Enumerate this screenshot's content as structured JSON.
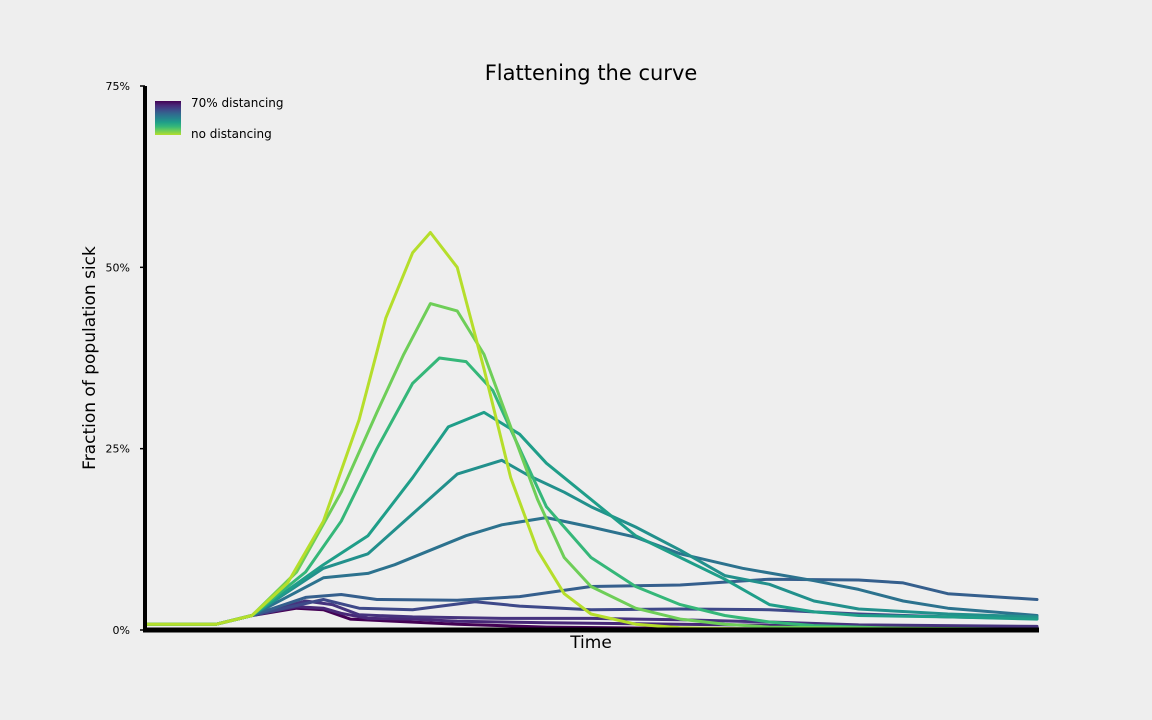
{
  "chart_data": {
    "type": "line",
    "title": "Flattening the curve",
    "xlabel": "Time",
    "ylabel": "Fraction of population sick",
    "ylim": [
      0,
      75
    ],
    "yticks": [
      {
        "value": 0,
        "label": "0%"
      },
      {
        "value": 25,
        "label": "25%"
      },
      {
        "value": 50,
        "label": "50%"
      },
      {
        "value": 75,
        "label": "75%"
      }
    ],
    "xlim": [
      0,
      100
    ],
    "xticks": "none",
    "grid": false,
    "legend": {
      "placement": "top-left",
      "type": "colorbar",
      "top_label": "70% distancing",
      "bottom_label": "no distancing",
      "colormap": [
        "#440154",
        "#482878",
        "#3e4989",
        "#31688e",
        "#26828e",
        "#1f9e89",
        "#35b779",
        "#6ece58",
        "#b5de2b"
      ]
    },
    "series": [
      {
        "color": "#440154",
        "points": [
          [
            0,
            0.8
          ],
          [
            8,
            0.8
          ],
          [
            12,
            2
          ],
          [
            17,
            3
          ],
          [
            20,
            2.8
          ],
          [
            23,
            1.5
          ],
          [
            28,
            1.2
          ],
          [
            35,
            0.8
          ],
          [
            45,
            0.4
          ],
          [
            60,
            0.2
          ],
          [
            80,
            0.1
          ],
          [
            100,
            0.1
          ]
        ]
      },
      {
        "color": "#482878",
        "points": [
          [
            0,
            0.8
          ],
          [
            8,
            0.8
          ],
          [
            12,
            2
          ],
          [
            17,
            3.2
          ],
          [
            20,
            3
          ],
          [
            22,
            2.3
          ],
          [
            25,
            1.6
          ],
          [
            30,
            1.5
          ],
          [
            35,
            1.2
          ],
          [
            45,
            1
          ],
          [
            60,
            0.8
          ],
          [
            80,
            0.5
          ],
          [
            100,
            0.4
          ]
        ]
      },
      {
        "color": "#46337e",
        "points": [
          [
            0,
            0.8
          ],
          [
            8,
            0.8
          ],
          [
            12,
            2
          ],
          [
            18,
            4
          ],
          [
            21,
            3.5
          ],
          [
            24,
            2.1
          ],
          [
            30,
            1.8
          ],
          [
            40,
            1.6
          ],
          [
            50,
            1.6
          ],
          [
            60,
            1.4
          ],
          [
            70,
            1.1
          ],
          [
            80,
            0.7
          ],
          [
            100,
            0.5
          ]
        ]
      },
      {
        "color": "#3e4989",
        "points": [
          [
            0,
            0.8
          ],
          [
            8,
            0.8
          ],
          [
            12,
            2
          ],
          [
            20,
            4.2
          ],
          [
            24,
            3
          ],
          [
            30,
            2.8
          ],
          [
            37,
            3.9
          ],
          [
            42,
            3.3
          ],
          [
            50,
            2.8
          ],
          [
            60,
            2.9
          ],
          [
            70,
            2.8
          ],
          [
            80,
            2.2
          ],
          [
            90,
            1.8
          ],
          [
            100,
            1.6
          ]
        ]
      },
      {
        "color": "#355f8d",
        "points": [
          [
            0,
            0.8
          ],
          [
            8,
            0.8
          ],
          [
            12,
            2
          ],
          [
            18,
            4.5
          ],
          [
            22,
            4.9
          ],
          [
            26,
            4.2
          ],
          [
            35,
            4.1
          ],
          [
            42,
            4.6
          ],
          [
            50,
            6
          ],
          [
            60,
            6.2
          ],
          [
            70,
            7
          ],
          [
            80,
            6.9
          ],
          [
            85,
            6.5
          ],
          [
            90,
            5
          ],
          [
            100,
            4.2
          ]
        ]
      },
      {
        "color": "#2c728e",
        "points": [
          [
            0,
            0.8
          ],
          [
            8,
            0.8
          ],
          [
            12,
            2
          ],
          [
            20,
            7.2
          ],
          [
            25,
            7.8
          ],
          [
            28,
            9
          ],
          [
            32,
            11
          ],
          [
            36,
            13
          ],
          [
            40,
            14.5
          ],
          [
            45,
            15.5
          ],
          [
            50,
            14.2
          ],
          [
            55,
            12.8
          ],
          [
            60,
            10.5
          ],
          [
            67,
            8.5
          ],
          [
            75,
            6.8
          ],
          [
            80,
            5.6
          ],
          [
            85,
            4
          ],
          [
            90,
            3
          ],
          [
            100,
            2
          ]
        ]
      },
      {
        "color": "#22908c",
        "points": [
          [
            0,
            0.8
          ],
          [
            8,
            0.8
          ],
          [
            12,
            2
          ],
          [
            20,
            8.5
          ],
          [
            25,
            10.5
          ],
          [
            30,
            16
          ],
          [
            35,
            21.5
          ],
          [
            40,
            23.4
          ],
          [
            43,
            21.3
          ],
          [
            47,
            19
          ],
          [
            50,
            17
          ],
          [
            55,
            14.2
          ],
          [
            60,
            11
          ],
          [
            65,
            7.5
          ],
          [
            70,
            6.3
          ],
          [
            75,
            4
          ],
          [
            80,
            2.9
          ],
          [
            90,
            2.2
          ],
          [
            100,
            1.8
          ]
        ]
      },
      {
        "color": "#1f9e89",
        "points": [
          [
            0,
            0.8
          ],
          [
            8,
            0.8
          ],
          [
            12,
            2
          ],
          [
            20,
            9
          ],
          [
            25,
            13
          ],
          [
            30,
            21
          ],
          [
            34,
            28
          ],
          [
            38,
            30
          ],
          [
            42,
            27
          ],
          [
            45,
            23
          ],
          [
            50,
            18
          ],
          [
            55,
            13
          ],
          [
            60,
            10
          ],
          [
            65,
            7
          ],
          [
            70,
            3.5
          ],
          [
            75,
            2.5
          ],
          [
            80,
            2
          ],
          [
            90,
            1.8
          ],
          [
            100,
            1.5
          ]
        ]
      },
      {
        "color": "#35b779",
        "points": [
          [
            0,
            0.8
          ],
          [
            8,
            0.8
          ],
          [
            12,
            2
          ],
          [
            18,
            8
          ],
          [
            22,
            15
          ],
          [
            26,
            25
          ],
          [
            30,
            34
          ],
          [
            33,
            37.5
          ],
          [
            36,
            37
          ],
          [
            39,
            33
          ],
          [
            42,
            25
          ],
          [
            45,
            17
          ],
          [
            50,
            10
          ],
          [
            55,
            6
          ],
          [
            60,
            3.5
          ],
          [
            65,
            2
          ],
          [
            70,
            1.1
          ],
          [
            75,
            0.6
          ],
          [
            85,
            0.2
          ],
          [
            100,
            0.1
          ]
        ]
      },
      {
        "color": "#6ece58",
        "points": [
          [
            0,
            0.8
          ],
          [
            8,
            0.8
          ],
          [
            12,
            2
          ],
          [
            17,
            8
          ],
          [
            22,
            19
          ],
          [
            26,
            30
          ],
          [
            29,
            38
          ],
          [
            32,
            45
          ],
          [
            35,
            44
          ],
          [
            38,
            38
          ],
          [
            41,
            28
          ],
          [
            44,
            18
          ],
          [
            47,
            10
          ],
          [
            50,
            6
          ],
          [
            55,
            3
          ],
          [
            60,
            1.5
          ],
          [
            65,
            0.8
          ],
          [
            70,
            0.4
          ],
          [
            100,
            0.1
          ]
        ]
      },
      {
        "color": "#b5de2b",
        "points": [
          [
            0,
            0.8
          ],
          [
            8,
            0.8
          ],
          [
            12,
            2
          ],
          [
            16,
            6.5
          ],
          [
            20,
            15
          ],
          [
            24,
            29
          ],
          [
            27,
            43
          ],
          [
            30,
            52
          ],
          [
            32,
            54.8
          ],
          [
            35,
            50
          ],
          [
            38,
            36
          ],
          [
            41,
            21
          ],
          [
            44,
            11
          ],
          [
            47,
            5
          ],
          [
            50,
            2.2
          ],
          [
            55,
            0.8
          ],
          [
            60,
            0.3
          ],
          [
            70,
            0.1
          ],
          [
            100,
            0
          ]
        ]
      }
    ]
  }
}
